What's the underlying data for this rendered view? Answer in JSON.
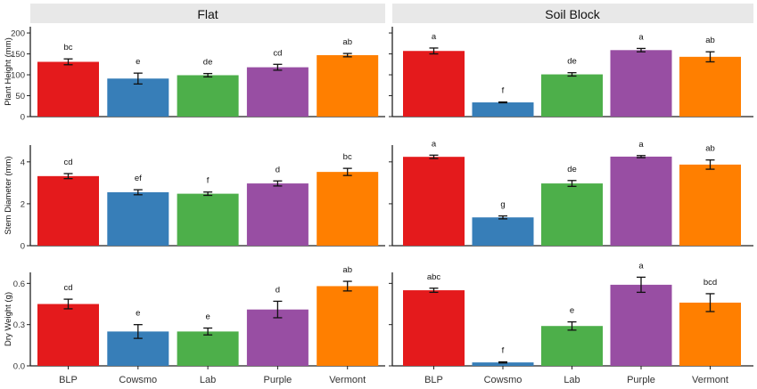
{
  "chart_data": {
    "type": "bar",
    "facets": [
      {
        "title": "Flat"
      },
      {
        "title": "Soil Block"
      }
    ],
    "categories": [
      "BLP",
      "Cowsmo",
      "Lab",
      "Purple",
      "Vermont"
    ],
    "colors": [
      "#e41a1c",
      "#377eb8",
      "#4daf4a",
      "#984ea3",
      "#ff7f00"
    ],
    "rows": [
      {
        "ylabel": "Plant Height (mm)",
        "ylim": [
          0,
          215
        ],
        "yticks": [
          "0",
          "50",
          "100",
          "150",
          "200"
        ],
        "ytick_values": [
          0,
          50,
          100,
          150,
          200
        ],
        "panels": [
          {
            "values": [
              131,
              91,
              99,
              118,
              147
            ],
            "errors": [
              7,
              13,
              4,
              7,
              4
            ],
            "labels": [
              "bc",
              "e",
              "de",
              "cd",
              "ab"
            ]
          },
          {
            "values": [
              157,
              34,
              101,
              159,
              143
            ],
            "errors": [
              7,
              1,
              4,
              4,
              12
            ],
            "labels": [
              "a",
              "f",
              "de",
              "a",
              "ab"
            ]
          }
        ]
      },
      {
        "ylabel": "Stem Diameter (mm)",
        "ylim": [
          0,
          4.8
        ],
        "yticks": [
          "0",
          "2",
          "4"
        ],
        "ytick_values": [
          0,
          2,
          4
        ],
        "panels": [
          {
            "values": [
              3.32,
              2.55,
              2.48,
              2.97,
              3.52
            ],
            "errors": [
              0.12,
              0.12,
              0.08,
              0.12,
              0.17
            ],
            "labels": [
              "cd",
              "ef",
              "f",
              "d",
              "bc"
            ]
          },
          {
            "values": [
              4.24,
              1.35,
              2.97,
              4.25,
              3.87
            ],
            "errors": [
              0.08,
              0.07,
              0.14,
              0.05,
              0.22
            ],
            "labels": [
              "a",
              "g",
              "de",
              "a",
              "ab"
            ]
          }
        ]
      },
      {
        "ylabel": "Dry Weight (g)",
        "ylim": [
          0,
          0.68
        ],
        "yticks": [
          "0.0",
          "0.3",
          "0.6"
        ],
        "ytick_values": [
          0,
          0.3,
          0.6
        ],
        "panels": [
          {
            "values": [
              0.45,
              0.25,
              0.25,
              0.41,
              0.58
            ],
            "errors": [
              0.035,
              0.05,
              0.025,
              0.06,
              0.035
            ],
            "labels": [
              "cd",
              "e",
              "e",
              "d",
              "ab"
            ]
          },
          {
            "values": [
              0.55,
              0.025,
              0.29,
              0.59,
              0.46
            ],
            "errors": [
              0.015,
              0.004,
              0.03,
              0.055,
              0.065
            ],
            "labels": [
              "abc",
              "f",
              "e",
              "a",
              "bcd"
            ]
          }
        ]
      }
    ]
  }
}
